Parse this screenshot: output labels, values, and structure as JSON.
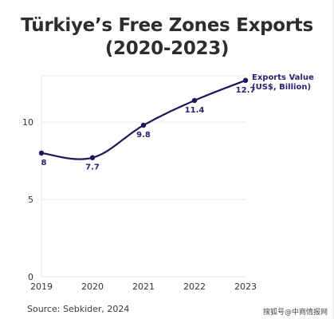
{
  "page": {
    "title_line1": "Türkiye’s Free Zones Exports",
    "title_line2": "(2020-2023)",
    "source": "Source: Sebkider, 2024",
    "watermark": "搜狐号@中商情报网"
  },
  "chart_data": {
    "type": "line",
    "title": "Türkiye’s Free Zones Exports (2020-2023)",
    "x": [
      "2019",
      "2020",
      "2021",
      "2022",
      "2023"
    ],
    "series": [
      {
        "name": "Exports Value (US$, Billion)",
        "values": [
          8,
          7.7,
          9.8,
          11.4,
          12.7
        ],
        "labels": [
          "8",
          "7.7",
          "9.8",
          "11.4",
          "12.7"
        ]
      }
    ],
    "ylim": [
      0,
      13
    ],
    "yticks": [
      "0",
      "5",
      "10"
    ],
    "xlabel": "",
    "ylabel": "",
    "grid": "horizontal",
    "legend": "end-of-line label",
    "colors": {
      "line": "#1f1659",
      "label": "#2a2170",
      "grid": "#e6e6e6",
      "axis_text": "#333333"
    }
  }
}
